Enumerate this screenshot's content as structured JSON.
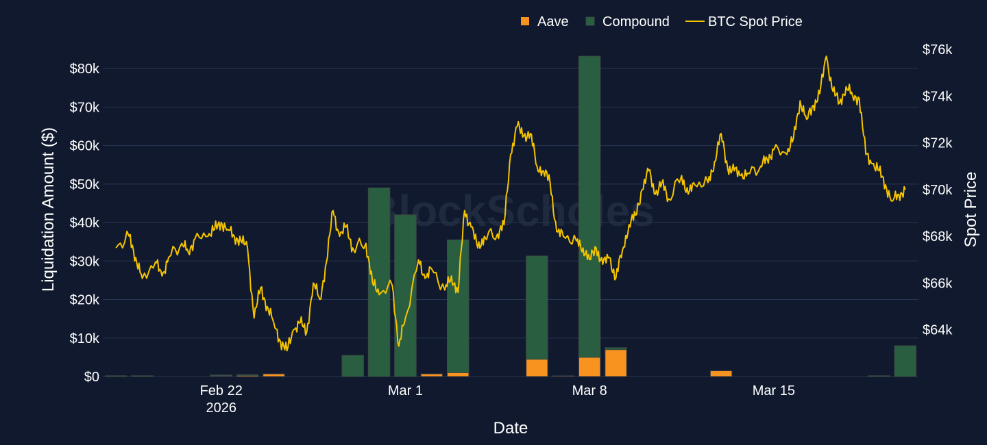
{
  "watermark": "BlockScholes",
  "colors": {
    "background": "#10192d",
    "grid": "#2a3553",
    "aave": "#f7931e",
    "compound": "#2a5e40",
    "compound_stroke": "#3a4a44",
    "btc_line": "#f5c400"
  },
  "chart_data": {
    "type": "bar",
    "barmode": "stack",
    "xlabel": "Date",
    "ylabel": "Liquidation Amount ($)",
    "y2label": "Spot Price",
    "ylim": [
      0,
      85000
    ],
    "y2lim": [
      62000,
      76000
    ],
    "yticks": [
      0,
      10000,
      20000,
      30000,
      40000,
      50000,
      60000,
      70000,
      80000
    ],
    "ytick_labels": [
      "$0",
      "$10k",
      "$20k",
      "$30k",
      "$40k",
      "$50k",
      "$60k",
      "$70k",
      "$80k"
    ],
    "y2ticks": [
      64000,
      66000,
      68000,
      70000,
      72000,
      74000,
      76000
    ],
    "y2tick_labels": [
      "$64k",
      "$66k",
      "$68k",
      "$70k",
      "$72k",
      "$74k",
      "$76k"
    ],
    "xticks": [
      {
        "date": "2026-02-22",
        "label": "Feb 22",
        "sublabel": "2026"
      },
      {
        "date": "2026-03-01",
        "label": "Mar 1",
        "sublabel": ""
      },
      {
        "date": "2026-03-08",
        "label": "Mar 8",
        "sublabel": ""
      },
      {
        "date": "2026-03-15",
        "label": "Mar 15",
        "sublabel": ""
      }
    ],
    "legend": {
      "placement": "top",
      "entries": [
        "Aave",
        "Compound",
        "BTC Spot Price"
      ]
    },
    "categories": [
      "2026-02-18",
      "2026-02-19",
      "2026-02-20",
      "2026-02-21",
      "2026-02-22",
      "2026-02-23",
      "2026-02-24",
      "2026-02-25",
      "2026-02-26",
      "2026-02-27",
      "2026-02-28",
      "2026-03-01",
      "2026-03-02",
      "2026-03-03",
      "2026-03-04",
      "2026-03-05",
      "2026-03-06",
      "2026-03-07",
      "2026-03-08",
      "2026-03-09",
      "2026-03-10",
      "2026-03-11",
      "2026-03-12",
      "2026-03-13",
      "2026-03-14",
      "2026-03-15",
      "2026-03-16",
      "2026-03-17",
      "2026-03-18",
      "2026-03-19",
      "2026-03-20"
    ],
    "series": [
      {
        "name": "Aave",
        "values": [
          0,
          0,
          0,
          0,
          200,
          300,
          700,
          0,
          0,
          0,
          0,
          0,
          700,
          1000,
          0,
          0,
          4500,
          200,
          5000,
          7000,
          0,
          0,
          0,
          1500,
          0,
          0,
          0,
          0,
          0,
          0,
          0
        ]
      },
      {
        "name": "Compound",
        "values": [
          200,
          200,
          0,
          0,
          200,
          200,
          0,
          0,
          0,
          5500,
          49000,
          42000,
          0,
          34500,
          0,
          0,
          26800,
          0,
          78200,
          500,
          0,
          0,
          0,
          0,
          0,
          0,
          0,
          0,
          0,
          200,
          8000
        ]
      }
    ],
    "line_series": {
      "name": "BTC Spot Price",
      "axis": "y2",
      "points": [
        [
          "2026-02-18 00:00",
          67500
        ],
        [
          "2026-02-18 12:00",
          68000
        ],
        [
          "2026-02-18 18:00",
          67100
        ],
        [
          "2026-02-19 00:00",
          66200
        ],
        [
          "2026-02-19 12:00",
          66900
        ],
        [
          "2026-02-19 18:00",
          66300
        ],
        [
          "2026-02-20 00:00",
          67100
        ],
        [
          "2026-02-20 12:00",
          67700
        ],
        [
          "2026-02-20 18:00",
          67300
        ],
        [
          "2026-02-21 00:00",
          67900
        ],
        [
          "2026-02-21 12:00",
          68000
        ],
        [
          "2026-02-21 18:00",
          68300
        ],
        [
          "2026-02-22 00:00",
          68600
        ],
        [
          "2026-02-22 06:00",
          68300
        ],
        [
          "2026-02-22 12:00",
          68000
        ],
        [
          "2026-02-22 18:00",
          67800
        ],
        [
          "2026-02-23 00:00",
          67500
        ],
        [
          "2026-02-23 06:00",
          64500
        ],
        [
          "2026-02-23 12:00",
          65800
        ],
        [
          "2026-02-23 18:00",
          65000
        ],
        [
          "2026-02-24 00:00",
          64300
        ],
        [
          "2026-02-24 06:00",
          63500
        ],
        [
          "2026-02-24 12:00",
          63100
        ],
        [
          "2026-02-24 18:00",
          64000
        ],
        [
          "2026-02-25 00:00",
          64300
        ],
        [
          "2026-02-25 06:00",
          63900
        ],
        [
          "2026-02-25 12:00",
          66000
        ],
        [
          "2026-02-25 18:00",
          65300
        ],
        [
          "2026-02-26 00:00",
          66900
        ],
        [
          "2026-02-26 06:00",
          69100
        ],
        [
          "2026-02-26 12:00",
          68000
        ],
        [
          "2026-02-26 18:00",
          68400
        ],
        [
          "2026-02-27 00:00",
          67500
        ],
        [
          "2026-02-27 12:00",
          67700
        ],
        [
          "2026-02-27 18:00",
          66000
        ],
        [
          "2026-02-28 00:00",
          65500
        ],
        [
          "2026-02-28 12:00",
          65900
        ],
        [
          "2026-02-28 18:00",
          63300
        ],
        [
          "2026-03-01 00:00",
          64500
        ],
        [
          "2026-03-01 12:00",
          67000
        ],
        [
          "2026-03-01 18:00",
          66200
        ],
        [
          "2026-03-02 00:00",
          66600
        ],
        [
          "2026-03-02 12:00",
          65700
        ],
        [
          "2026-03-02 18:00",
          66300
        ],
        [
          "2026-03-03 00:00",
          65600
        ],
        [
          "2026-03-03 06:00",
          69100
        ],
        [
          "2026-03-03 12:00",
          68400
        ],
        [
          "2026-03-03 18:00",
          67500
        ],
        [
          "2026-03-04 00:00",
          68000
        ],
        [
          "2026-03-04 12:00",
          68100
        ],
        [
          "2026-03-04 18:00",
          68500
        ],
        [
          "2026-03-05 00:00",
          71500
        ],
        [
          "2026-03-05 06:00",
          72700
        ],
        [
          "2026-03-05 12:00",
          72300
        ],
        [
          "2026-03-05 18:00",
          72400
        ],
        [
          "2026-03-06 00:00",
          71000
        ],
        [
          "2026-03-06 06:00",
          70800
        ],
        [
          "2026-03-06 12:00",
          70300
        ],
        [
          "2026-03-06 18:00",
          68200
        ],
        [
          "2026-03-07 00:00",
          68000
        ],
        [
          "2026-03-07 12:00",
          67800
        ],
        [
          "2026-03-07 18:00",
          67500
        ],
        [
          "2026-03-08 00:00",
          67000
        ],
        [
          "2026-03-08 06:00",
          67500
        ],
        [
          "2026-03-08 12:00",
          66800
        ],
        [
          "2026-03-08 18:00",
          67100
        ],
        [
          "2026-03-09 00:00",
          66200
        ],
        [
          "2026-03-09 06:00",
          67400
        ],
        [
          "2026-03-09 12:00",
          68500
        ],
        [
          "2026-03-09 18:00",
          68900
        ],
        [
          "2026-03-10 00:00",
          70000
        ],
        [
          "2026-03-10 06:00",
          70800
        ],
        [
          "2026-03-10 12:00",
          69800
        ],
        [
          "2026-03-10 18:00",
          70300
        ],
        [
          "2026-03-11 00:00",
          69600
        ],
        [
          "2026-03-11 12:00",
          70600
        ],
        [
          "2026-03-11 18:00",
          69800
        ],
        [
          "2026-03-12 00:00",
          70200
        ],
        [
          "2026-03-12 12:00",
          70300
        ],
        [
          "2026-03-12 18:00",
          71200
        ],
        [
          "2026-03-13 00:00",
          72400
        ],
        [
          "2026-03-13 06:00",
          70900
        ],
        [
          "2026-03-13 12:00",
          70800
        ],
        [
          "2026-03-13 18:00",
          70600
        ],
        [
          "2026-03-14 00:00",
          70700
        ],
        [
          "2026-03-14 12:00",
          71000
        ],
        [
          "2026-03-14 18:00",
          71300
        ],
        [
          "2026-03-15 00:00",
          71700
        ],
        [
          "2026-03-15 12:00",
          71500
        ],
        [
          "2026-03-15 18:00",
          72200
        ],
        [
          "2026-03-16 00:00",
          73800
        ],
        [
          "2026-03-16 06:00",
          73000
        ],
        [
          "2026-03-16 12:00",
          73600
        ],
        [
          "2026-03-16 18:00",
          74100
        ],
        [
          "2026-03-17 00:00",
          75700
        ],
        [
          "2026-03-17 06:00",
          74200
        ],
        [
          "2026-03-17 12:00",
          73700
        ],
        [
          "2026-03-17 18:00",
          74400
        ],
        [
          "2026-03-18 00:00",
          74000
        ],
        [
          "2026-03-18 06:00",
          73900
        ],
        [
          "2026-03-18 12:00",
          71500
        ],
        [
          "2026-03-18 18:00",
          71100
        ],
        [
          "2026-03-19 00:00",
          70800
        ],
        [
          "2026-03-19 06:00",
          70200
        ],
        [
          "2026-03-19 12:00",
          69500
        ],
        [
          "2026-03-19 18:00",
          69800
        ],
        [
          "2026-03-20 00:00",
          70000
        ]
      ]
    }
  }
}
